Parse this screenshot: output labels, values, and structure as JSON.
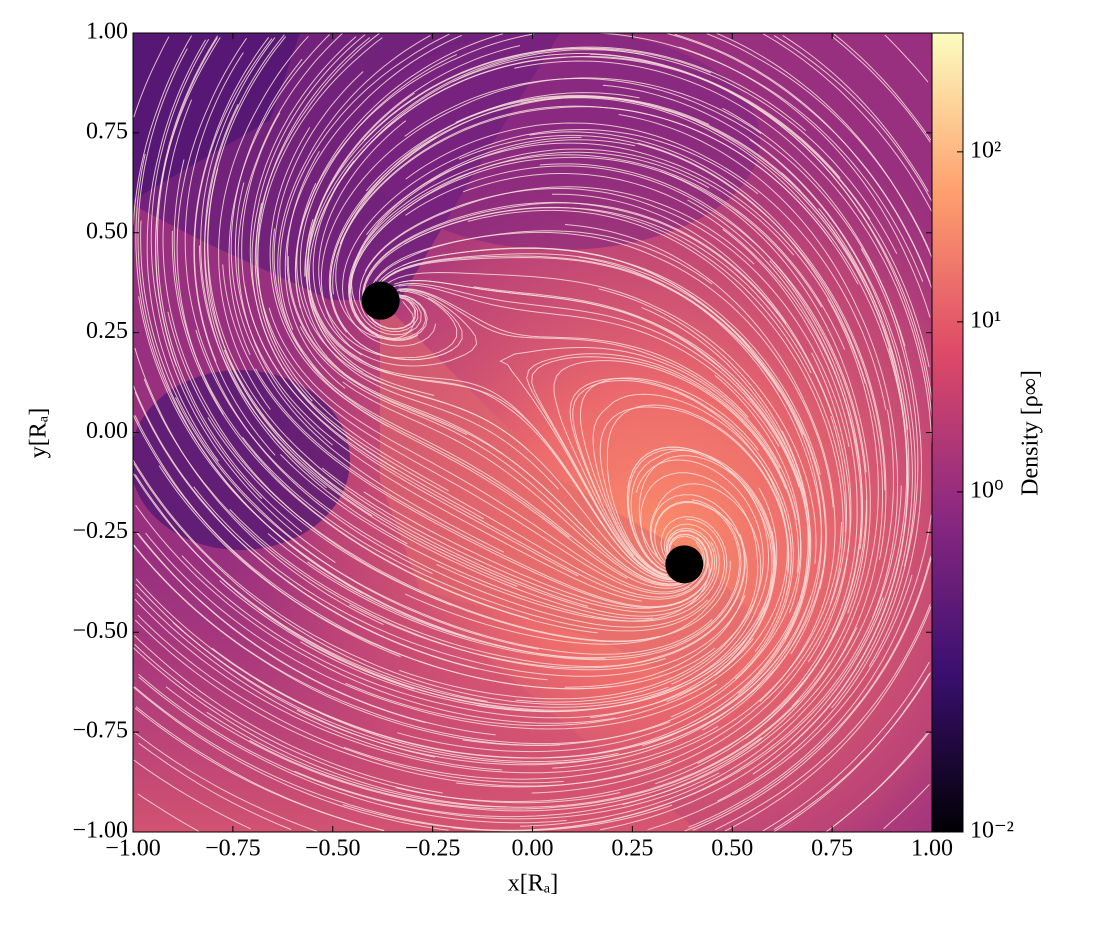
{
  "chart_data": {
    "type": "density-map",
    "xlabel": "x[Rₐ]",
    "ylabel": "y[Rₐ]",
    "colorbar_label": "Density [ρ∞]",
    "xlim": [
      -1,
      1
    ],
    "ylim": [
      -1,
      1
    ],
    "xticks": [
      {
        "value": -1,
        "label": "−1.00"
      },
      {
        "value": -0.75,
        "label": "−0.75"
      },
      {
        "value": -0.5,
        "label": "−0.50"
      },
      {
        "value": -0.25,
        "label": "−0.25"
      },
      {
        "value": 0,
        "label": "0.00"
      },
      {
        "value": 0.25,
        "label": "0.25"
      },
      {
        "value": 0.5,
        "label": "0.50"
      },
      {
        "value": 0.75,
        "label": "0.75"
      },
      {
        "value": 1,
        "label": "1.00"
      }
    ],
    "yticks": [
      {
        "value": -1,
        "label": "−1.00"
      },
      {
        "value": -0.75,
        "label": "−0.75"
      },
      {
        "value": -0.5,
        "label": "−0.50"
      },
      {
        "value": -0.25,
        "label": "−0.25"
      },
      {
        "value": 0,
        "label": "0.00"
      },
      {
        "value": 0.25,
        "label": "0.25"
      },
      {
        "value": 0.5,
        "label": "0.50"
      },
      {
        "value": 0.75,
        "label": "0.75"
      },
      {
        "value": 1,
        "label": "1.00"
      }
    ],
    "clim": [
      0.01,
      500
    ],
    "color_scale": "log",
    "cticks": [
      {
        "value": 0.01,
        "label": "10⁻²"
      },
      {
        "value": 1,
        "label": "10⁰"
      },
      {
        "value": 10,
        "label": "10¹"
      },
      {
        "value": 100,
        "label": "10²"
      }
    ],
    "colormap": [
      "#000004",
      "#3b0f70",
      "#8c2981",
      "#de4968",
      "#fe9f6d",
      "#fcfdbf"
    ],
    "points": {
      "x": [
        -0.38,
        0.38
      ],
      "y": [
        0.33,
        -0.33
      ],
      "color": "#000000"
    }
  }
}
